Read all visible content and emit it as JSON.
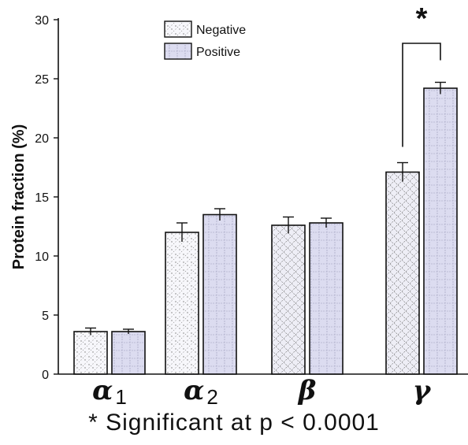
{
  "chart_data": {
    "type": "bar",
    "ylabel": "Protein fraction (%)",
    "ylim": [
      0,
      30
    ],
    "yticks": [
      0,
      5,
      10,
      15,
      20,
      25,
      30
    ],
    "categories": [
      "α1",
      "α2",
      "β",
      "γ"
    ],
    "series": [
      {
        "name": "Negative",
        "values": [
          3.6,
          12.0,
          12.6,
          17.1
        ],
        "errors": [
          0.3,
          0.8,
          0.7,
          0.8
        ],
        "color": "#f7f7fb",
        "pattern": "dots-and-diagonal-hatch"
      },
      {
        "name": "Positive",
        "values": [
          3.6,
          13.5,
          12.8,
          24.2
        ],
        "errors": [
          0.2,
          0.5,
          0.4,
          0.5
        ],
        "color": "#dcdcf0",
        "pattern": "grid-hatch"
      }
    ],
    "legend_position": "top-center",
    "significance": {
      "category": "γ",
      "marker": "*"
    },
    "footnote": "* Significant at p < 0.0001",
    "grid": false
  }
}
